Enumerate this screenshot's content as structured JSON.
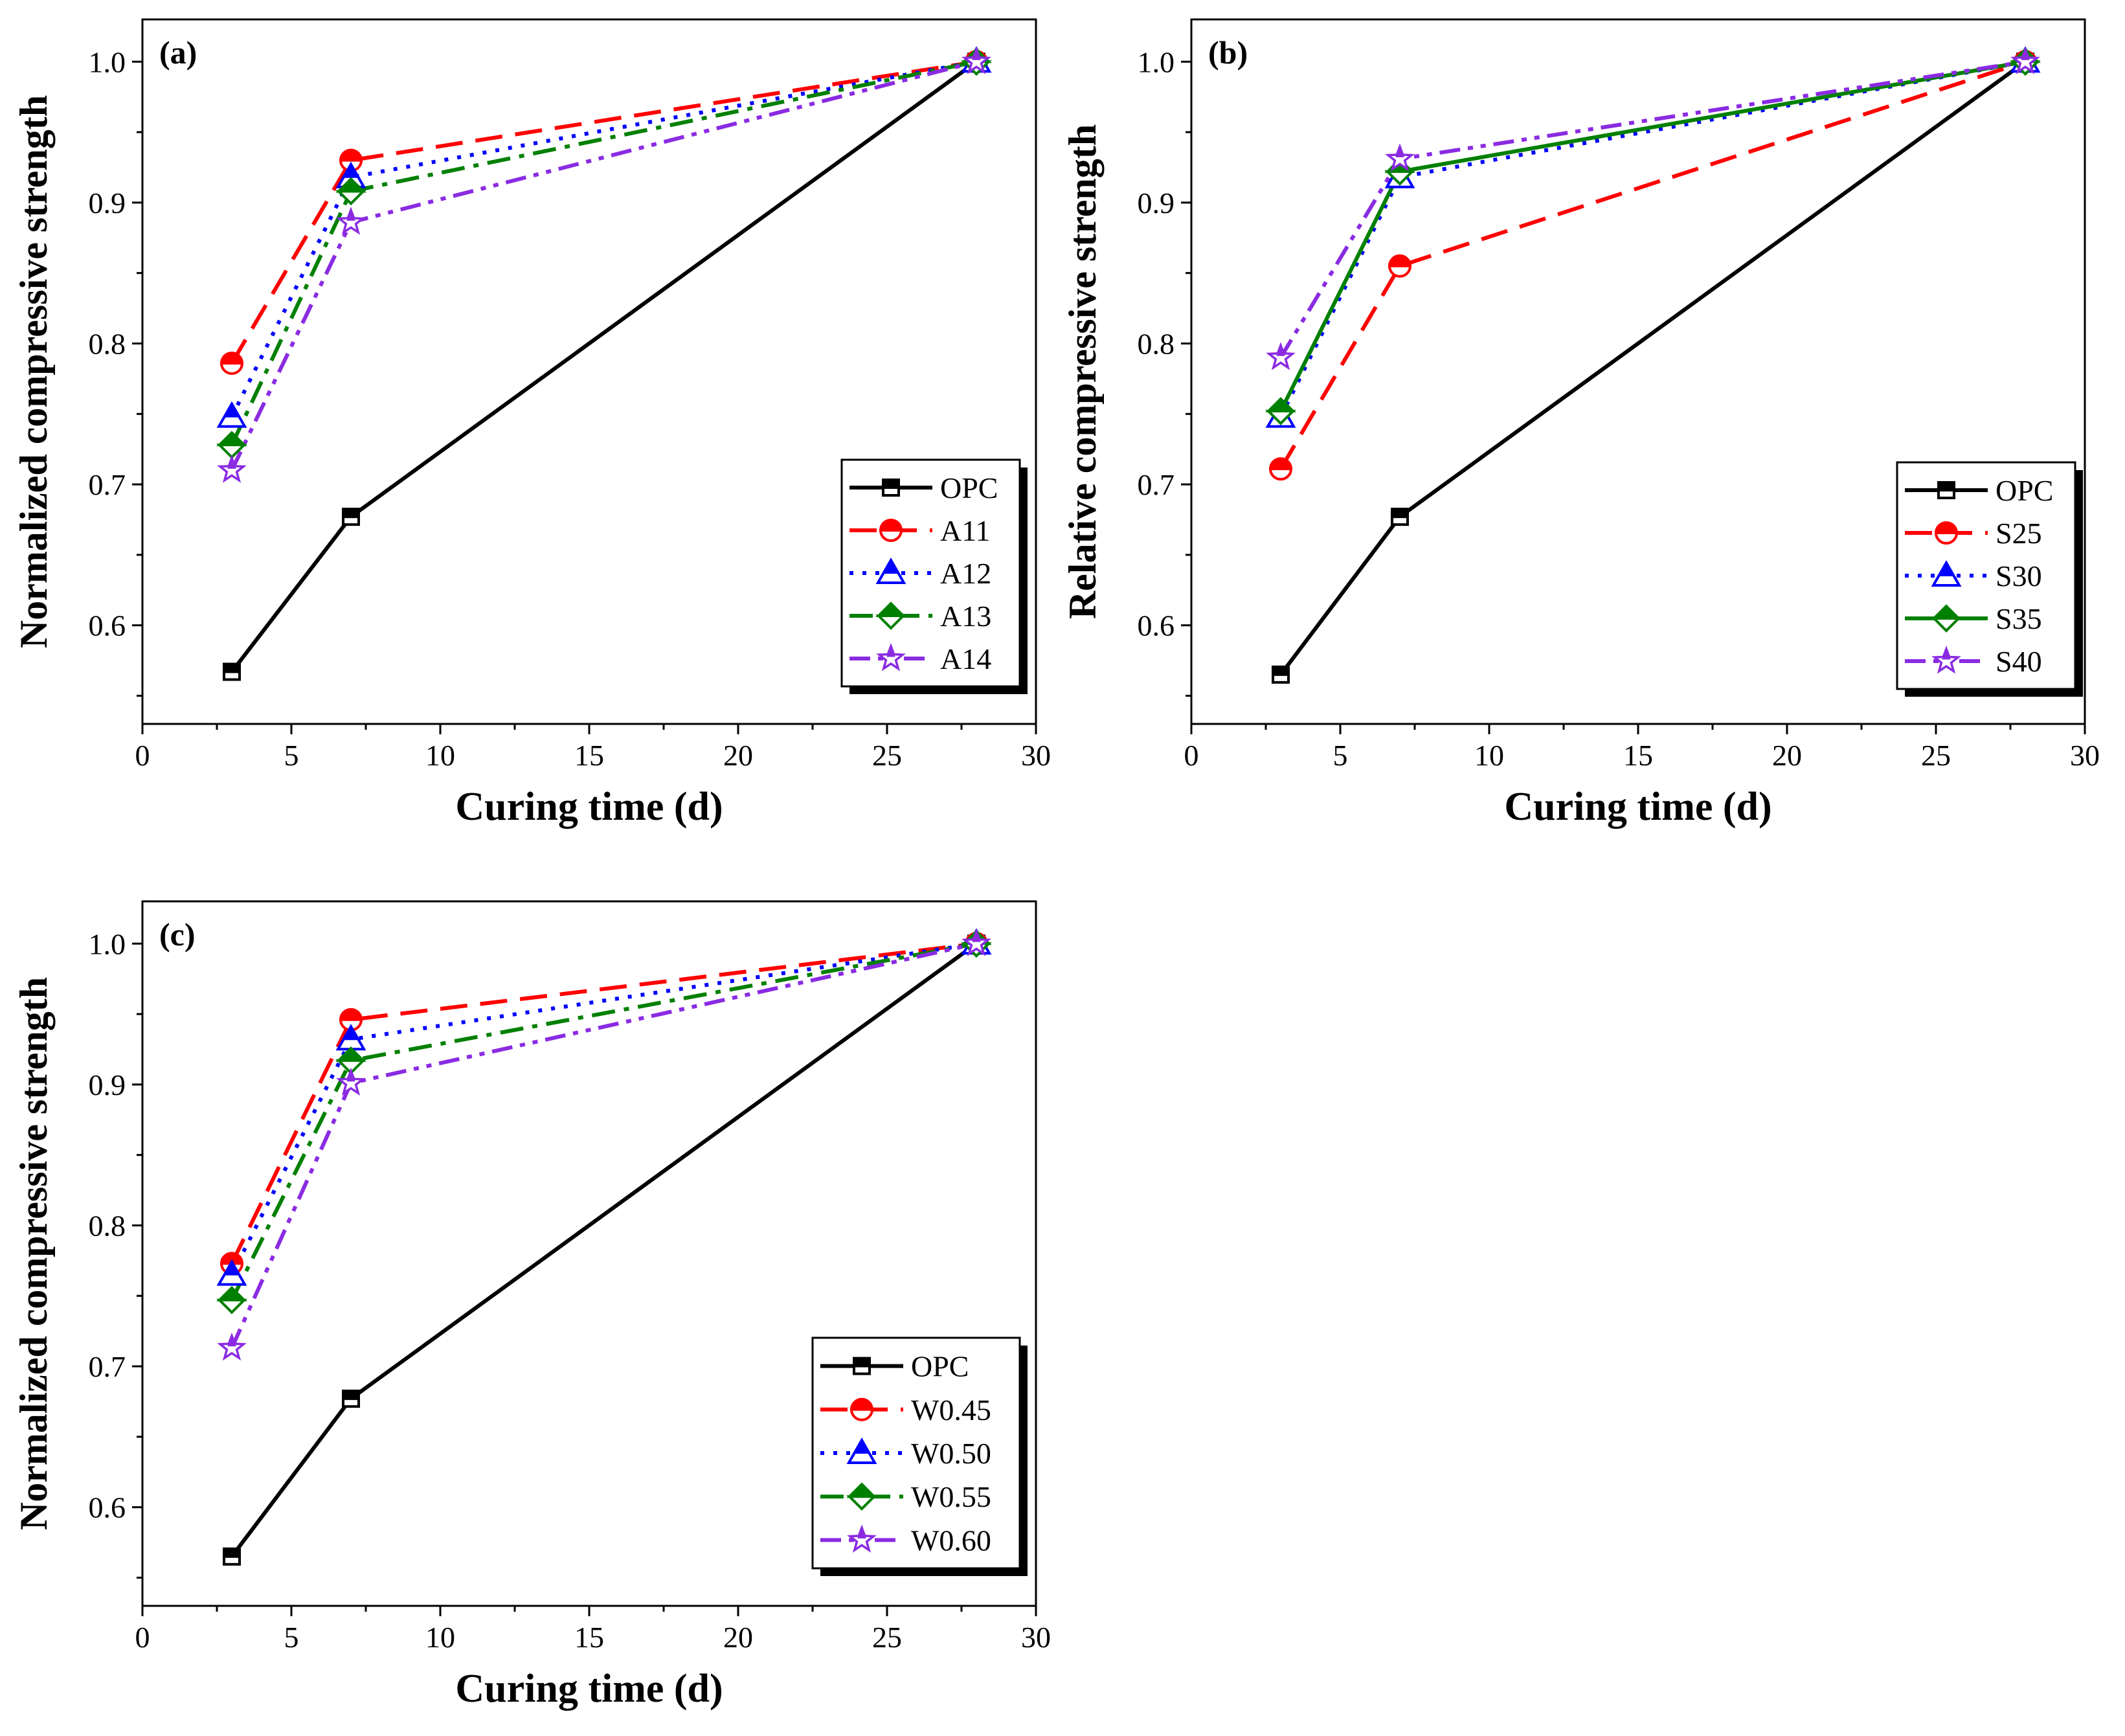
{
  "chart_data": [
    {
      "type": "line",
      "panel_label": "(a)",
      "xlabel": "Curing time (d)",
      "ylabel": "Normalized compressive strength",
      "xlim": [
        0,
        30
      ],
      "ylim": [
        0.53,
        1.03
      ],
      "xticks": [
        0,
        5,
        10,
        15,
        20,
        25,
        30
      ],
      "yticks": [
        0.6,
        0.7,
        0.8,
        0.9,
        1.0
      ],
      "yticklabels": [
        "0.6",
        "0.7",
        "0.8",
        "0.9",
        "1.0"
      ],
      "grid": false,
      "legend_position": "bottom-right",
      "x": [
        3,
        7,
        28
      ],
      "series": [
        {
          "name": "OPC",
          "values": [
            0.567,
            0.677,
            1.0
          ],
          "color": "#000000",
          "marker": "square",
          "dash": "solid"
        },
        {
          "name": "A11",
          "values": [
            0.786,
            0.93,
            1.0
          ],
          "color": "#ff0000",
          "marker": "circle",
          "dash": "dash"
        },
        {
          "name": "A12",
          "values": [
            0.748,
            0.918,
            1.0
          ],
          "color": "#0000ff",
          "marker": "triangle",
          "dash": "dot"
        },
        {
          "name": "A13",
          "values": [
            0.728,
            0.908,
            1.0
          ],
          "color": "#008000",
          "marker": "diamond",
          "dash": "dashdot"
        },
        {
          "name": "A14",
          "values": [
            0.71,
            0.886,
            1.0
          ],
          "color": "#8a2be2",
          "marker": "star",
          "dash": "dashdotdot"
        }
      ]
    },
    {
      "type": "line",
      "panel_label": "(b)",
      "xlabel": "Curing time (d)",
      "ylabel": "Relative compressive strength",
      "xlim": [
        0,
        30
      ],
      "ylim": [
        0.53,
        1.03
      ],
      "xticks": [
        0,
        5,
        10,
        15,
        20,
        25,
        30
      ],
      "yticks": [
        0.6,
        0.7,
        0.8,
        0.9,
        1.0
      ],
      "yticklabels": [
        "0.6",
        "0.7",
        "0.8",
        "0.9",
        "1.0"
      ],
      "grid": false,
      "legend_position": "bottom-right",
      "x": [
        3,
        7,
        28
      ],
      "series": [
        {
          "name": "OPC",
          "values": [
            0.565,
            0.677,
            1.0
          ],
          "color": "#000000",
          "marker": "square",
          "dash": "solid"
        },
        {
          "name": "S25",
          "values": [
            0.711,
            0.855,
            1.0
          ],
          "color": "#ff0000",
          "marker": "circle",
          "dash": "dash"
        },
        {
          "name": "S30",
          "values": [
            0.748,
            0.918,
            1.0
          ],
          "color": "#0000ff",
          "marker": "triangle",
          "dash": "dot"
        },
        {
          "name": "S35",
          "values": [
            0.752,
            0.922,
            1.0
          ],
          "color": "#008000",
          "marker": "diamond",
          "dash": "solid"
        },
        {
          "name": "S40",
          "values": [
            0.79,
            0.931,
            1.0
          ],
          "color": "#8a2be2",
          "marker": "star",
          "dash": "dashdotdot"
        }
      ]
    },
    {
      "type": "line",
      "panel_label": "(c)",
      "xlabel": "Curing time (d)",
      "ylabel": "Normalized compressive strength",
      "xlim": [
        0,
        30
      ],
      "ylim": [
        0.53,
        1.03
      ],
      "xticks": [
        0,
        5,
        10,
        15,
        20,
        25,
        30
      ],
      "yticks": [
        0.6,
        0.7,
        0.8,
        0.9,
        1.0
      ],
      "yticklabels": [
        "0.6",
        "0.7",
        "0.8",
        "0.9",
        "1.0"
      ],
      "grid": false,
      "legend_position": "bottom-right",
      "x": [
        3,
        7,
        28
      ],
      "series": [
        {
          "name": "OPC",
          "values": [
            0.565,
            0.677,
            1.0
          ],
          "color": "#000000",
          "marker": "square",
          "dash": "solid"
        },
        {
          "name": "W0.45",
          "values": [
            0.773,
            0.946,
            1.0
          ],
          "color": "#ff0000",
          "marker": "circle",
          "dash": "dash"
        },
        {
          "name": "W0.50",
          "values": [
            0.765,
            0.932,
            1.0
          ],
          "color": "#0000ff",
          "marker": "triangle",
          "dash": "dot"
        },
        {
          "name": "W0.55",
          "values": [
            0.747,
            0.917,
            1.0
          ],
          "color": "#008000",
          "marker": "diamond",
          "dash": "dashdot"
        },
        {
          "name": "W0.60",
          "values": [
            0.713,
            0.901,
            1.0
          ],
          "color": "#8a2be2",
          "marker": "star",
          "dash": "dashdotdot"
        }
      ]
    }
  ]
}
